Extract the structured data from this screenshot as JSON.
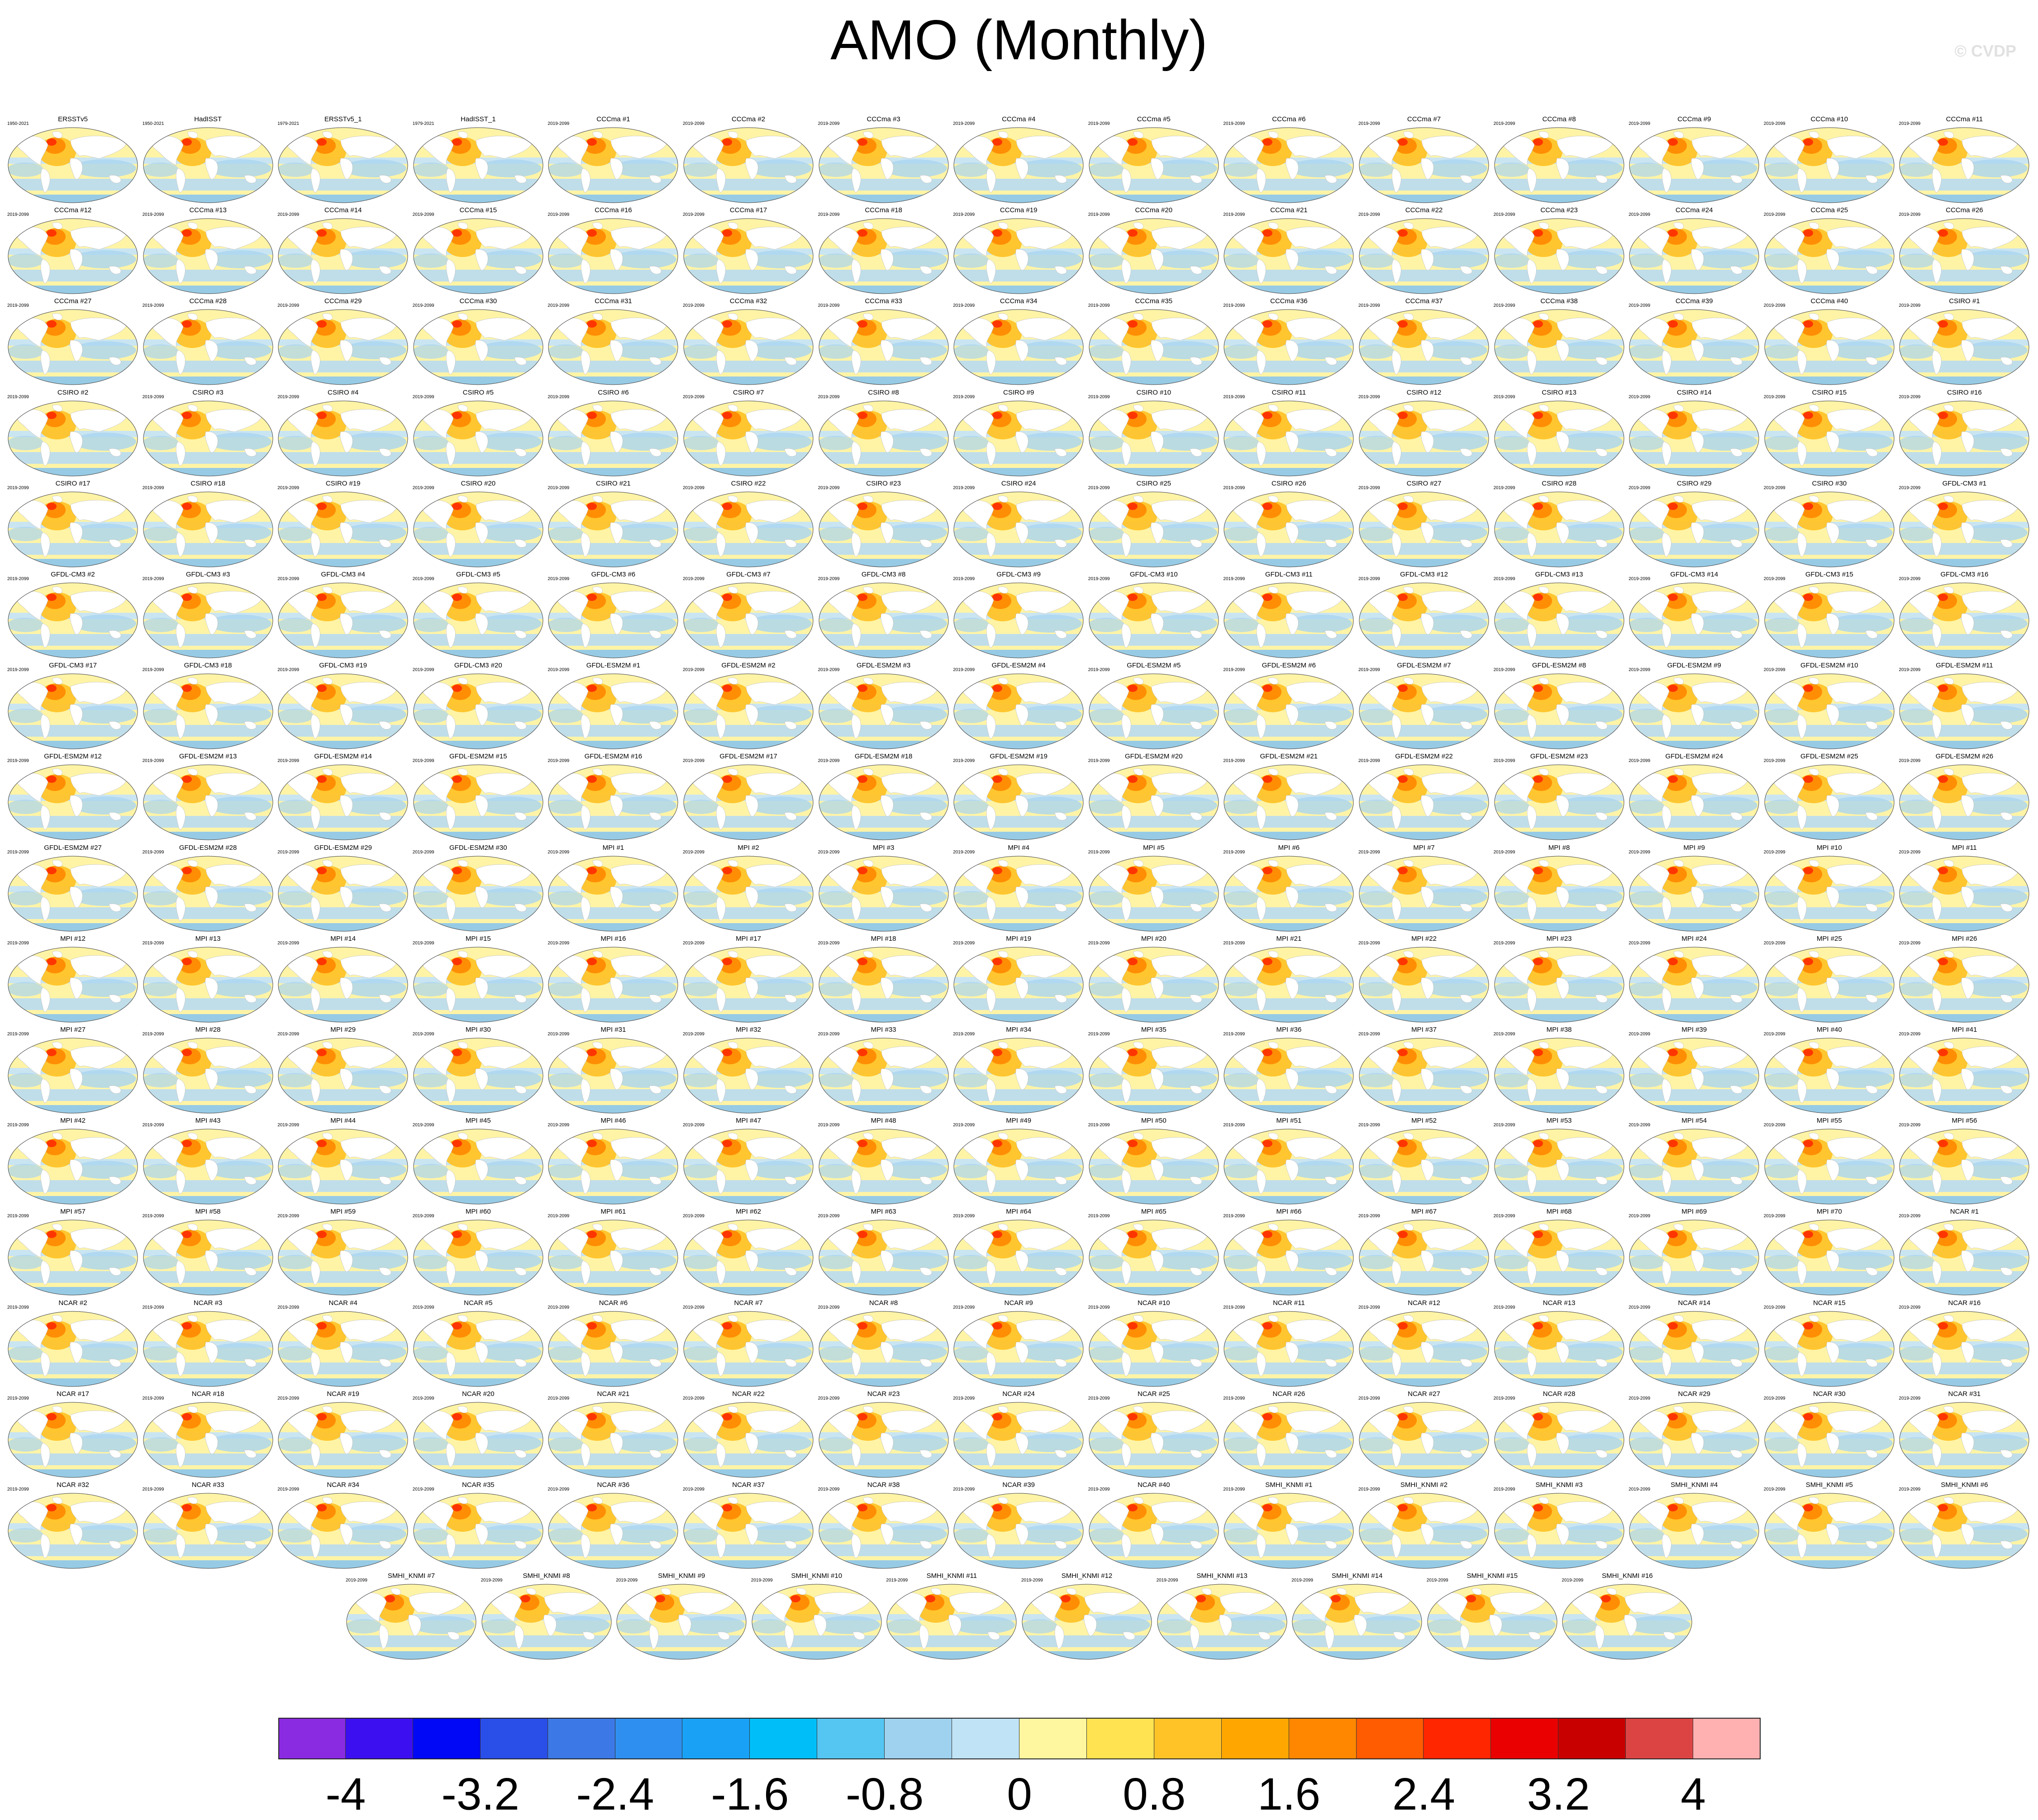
{
  "header": {
    "title": "AMO (Monthly)",
    "copyright": "© CVDP"
  },
  "panels": [
    {
      "title": "ERSSTv5",
      "period": "1950-2021"
    },
    {
      "title": "HadISST",
      "period": "1950-2021"
    },
    {
      "title": "ERSSTv5_1",
      "period": "1979-2021"
    },
    {
      "title": "HadISST_1",
      "period": "1979-2021"
    },
    {
      "title": "CCCma #1",
      "period": "2019-2099"
    },
    {
      "title": "CCCma #2",
      "period": "2019-2099"
    },
    {
      "title": "CCCma #3",
      "period": "2019-2099"
    },
    {
      "title": "CCCma #4",
      "period": "2019-2099"
    },
    {
      "title": "CCCma #5",
      "period": "2019-2099"
    },
    {
      "title": "CCCma #6",
      "period": "2019-2099"
    },
    {
      "title": "CCCma #7",
      "period": "2019-2099"
    },
    {
      "title": "CCCma #8",
      "period": "2019-2099"
    },
    {
      "title": "CCCma #9",
      "period": "2019-2099"
    },
    {
      "title": "CCCma #10",
      "period": "2019-2099"
    },
    {
      "title": "CCCma #11",
      "period": "2019-2099"
    },
    {
      "title": "CCCma #12",
      "period": "2019-2099"
    },
    {
      "title": "CCCma #13",
      "period": "2019-2099"
    },
    {
      "title": "CCCma #14",
      "period": "2019-2099"
    },
    {
      "title": "CCCma #15",
      "period": "2019-2099"
    },
    {
      "title": "CCCma #16",
      "period": "2019-2099"
    },
    {
      "title": "CCCma #17",
      "period": "2019-2099"
    },
    {
      "title": "CCCma #18",
      "period": "2019-2099"
    },
    {
      "title": "CCCma #19",
      "period": "2019-2099"
    },
    {
      "title": "CCCma #20",
      "period": "2019-2099"
    },
    {
      "title": "CCCma #21",
      "period": "2019-2099"
    },
    {
      "title": "CCCma #22",
      "period": "2019-2099"
    },
    {
      "title": "CCCma #23",
      "period": "2019-2099"
    },
    {
      "title": "CCCma #24",
      "period": "2019-2099"
    },
    {
      "title": "CCCma #25",
      "period": "2019-2099"
    },
    {
      "title": "CCCma #26",
      "period": "2019-2099"
    },
    {
      "title": "CCCma #27",
      "period": "2019-2099"
    },
    {
      "title": "CCCma #28",
      "period": "2019-2099"
    },
    {
      "title": "CCCma #29",
      "period": "2019-2099"
    },
    {
      "title": "CCCma #30",
      "period": "2019-2099"
    },
    {
      "title": "CCCma #31",
      "period": "2019-2099"
    },
    {
      "title": "CCCma #32",
      "period": "2019-2099"
    },
    {
      "title": "CCCma #33",
      "period": "2019-2099"
    },
    {
      "title": "CCCma #34",
      "period": "2019-2099"
    },
    {
      "title": "CCCma #35",
      "period": "2019-2099"
    },
    {
      "title": "CCCma #36",
      "period": "2019-2099"
    },
    {
      "title": "CCCma #37",
      "period": "2019-2099"
    },
    {
      "title": "CCCma #38",
      "period": "2019-2099"
    },
    {
      "title": "CCCma #39",
      "period": "2019-2099"
    },
    {
      "title": "CCCma #40",
      "period": "2019-2099"
    },
    {
      "title": "CSIRO #1",
      "period": "2019-2099"
    },
    {
      "title": "CSIRO #2",
      "period": "2019-2099"
    },
    {
      "title": "CSIRO #3",
      "period": "2019-2099"
    },
    {
      "title": "CSIRO #4",
      "period": "2019-2099"
    },
    {
      "title": "CSIRO #5",
      "period": "2019-2099"
    },
    {
      "title": "CSIRO #6",
      "period": "2019-2099"
    },
    {
      "title": "CSIRO #7",
      "period": "2019-2099"
    },
    {
      "title": "CSIRO #8",
      "period": "2019-2099"
    },
    {
      "title": "CSIRO #9",
      "period": "2019-2099"
    },
    {
      "title": "CSIRO #10",
      "period": "2019-2099"
    },
    {
      "title": "CSIRO #11",
      "period": "2019-2099"
    },
    {
      "title": "CSIRO #12",
      "period": "2019-2099"
    },
    {
      "title": "CSIRO #13",
      "period": "2019-2099"
    },
    {
      "title": "CSIRO #14",
      "period": "2019-2099"
    },
    {
      "title": "CSIRO #15",
      "period": "2019-2099"
    },
    {
      "title": "CSIRO #16",
      "period": "2019-2099"
    },
    {
      "title": "CSIRO #17",
      "period": "2019-2099"
    },
    {
      "title": "CSIRO #18",
      "period": "2019-2099"
    },
    {
      "title": "CSIRO #19",
      "period": "2019-2099"
    },
    {
      "title": "CSIRO #20",
      "period": "2019-2099"
    },
    {
      "title": "CSIRO #21",
      "period": "2019-2099"
    },
    {
      "title": "CSIRO #22",
      "period": "2019-2099"
    },
    {
      "title": "CSIRO #23",
      "period": "2019-2099"
    },
    {
      "title": "CSIRO #24",
      "period": "2019-2099"
    },
    {
      "title": "CSIRO #25",
      "period": "2019-2099"
    },
    {
      "title": "CSIRO #26",
      "period": "2019-2099"
    },
    {
      "title": "CSIRO #27",
      "period": "2019-2099"
    },
    {
      "title": "CSIRO #28",
      "period": "2019-2099"
    },
    {
      "title": "CSIRO #29",
      "period": "2019-2099"
    },
    {
      "title": "CSIRO #30",
      "period": "2019-2099"
    },
    {
      "title": "GFDL-CM3 #1",
      "period": "2019-2099"
    },
    {
      "title": "GFDL-CM3 #2",
      "period": "2019-2099"
    },
    {
      "title": "GFDL-CM3 #3",
      "period": "2019-2099"
    },
    {
      "title": "GFDL-CM3 #4",
      "period": "2019-2099"
    },
    {
      "title": "GFDL-CM3 #5",
      "period": "2019-2099"
    },
    {
      "title": "GFDL-CM3 #6",
      "period": "2019-2099"
    },
    {
      "title": "GFDL-CM3 #7",
      "period": "2019-2099"
    },
    {
      "title": "GFDL-CM3 #8",
      "period": "2019-2099"
    },
    {
      "title": "GFDL-CM3 #9",
      "period": "2019-2099"
    },
    {
      "title": "GFDL-CM3 #10",
      "period": "2019-2099"
    },
    {
      "title": "GFDL-CM3 #11",
      "period": "2019-2099"
    },
    {
      "title": "GFDL-CM3 #12",
      "period": "2019-2099"
    },
    {
      "title": "GFDL-CM3 #13",
      "period": "2019-2099"
    },
    {
      "title": "GFDL-CM3 #14",
      "period": "2019-2099"
    },
    {
      "title": "GFDL-CM3 #15",
      "period": "2019-2099"
    },
    {
      "title": "GFDL-CM3 #16",
      "period": "2019-2099"
    },
    {
      "title": "GFDL-CM3 #17",
      "period": "2019-2099"
    },
    {
      "title": "GFDL-CM3 #18",
      "period": "2019-2099"
    },
    {
      "title": "GFDL-CM3 #19",
      "period": "2019-2099"
    },
    {
      "title": "GFDL-CM3 #20",
      "period": "2019-2099"
    },
    {
      "title": "GFDL-ESM2M #1",
      "period": "2019-2099"
    },
    {
      "title": "GFDL-ESM2M #2",
      "period": "2019-2099"
    },
    {
      "title": "GFDL-ESM2M #3",
      "period": "2019-2099"
    },
    {
      "title": "GFDL-ESM2M #4",
      "period": "2019-2099"
    },
    {
      "title": "GFDL-ESM2M #5",
      "period": "2019-2099"
    },
    {
      "title": "GFDL-ESM2M #6",
      "period": "2019-2099"
    },
    {
      "title": "GFDL-ESM2M #7",
      "period": "2019-2099"
    },
    {
      "title": "GFDL-ESM2M #8",
      "period": "2019-2099"
    },
    {
      "title": "GFDL-ESM2M #9",
      "period": "2019-2099"
    },
    {
      "title": "GFDL-ESM2M #10",
      "period": "2019-2099"
    },
    {
      "title": "GFDL-ESM2M #11",
      "period": "2019-2099"
    },
    {
      "title": "GFDL-ESM2M #12",
      "period": "2019-2099"
    },
    {
      "title": "GFDL-ESM2M #13",
      "period": "2019-2099"
    },
    {
      "title": "GFDL-ESM2M #14",
      "period": "2019-2099"
    },
    {
      "title": "GFDL-ESM2M #15",
      "period": "2019-2099"
    },
    {
      "title": "GFDL-ESM2M #16",
      "period": "2019-2099"
    },
    {
      "title": "GFDL-ESM2M #17",
      "period": "2019-2099"
    },
    {
      "title": "GFDL-ESM2M #18",
      "period": "2019-2099"
    },
    {
      "title": "GFDL-ESM2M #19",
      "period": "2019-2099"
    },
    {
      "title": "GFDL-ESM2M #20",
      "period": "2019-2099"
    },
    {
      "title": "GFDL-ESM2M #21",
      "period": "2019-2099"
    },
    {
      "title": "GFDL-ESM2M #22",
      "period": "2019-2099"
    },
    {
      "title": "GFDL-ESM2M #23",
      "period": "2019-2099"
    },
    {
      "title": "GFDL-ESM2M #24",
      "period": "2019-2099"
    },
    {
      "title": "GFDL-ESM2M #25",
      "period": "2019-2099"
    },
    {
      "title": "GFDL-ESM2M #26",
      "period": "2019-2099"
    },
    {
      "title": "GFDL-ESM2M #27",
      "period": "2019-2099"
    },
    {
      "title": "GFDL-ESM2M #28",
      "period": "2019-2099"
    },
    {
      "title": "GFDL-ESM2M #29",
      "period": "2019-2099"
    },
    {
      "title": "GFDL-ESM2M #30",
      "period": "2019-2099"
    },
    {
      "title": "MPI #1",
      "period": "2019-2099"
    },
    {
      "title": "MPI #2",
      "period": "2019-2099"
    },
    {
      "title": "MPI #3",
      "period": "2019-2099"
    },
    {
      "title": "MPI #4",
      "period": "2019-2099"
    },
    {
      "title": "MPI #5",
      "period": "2019-2099"
    },
    {
      "title": "MPI #6",
      "period": "2019-2099"
    },
    {
      "title": "MPI #7",
      "period": "2019-2099"
    },
    {
      "title": "MPI #8",
      "period": "2019-2099"
    },
    {
      "title": "MPI #9",
      "period": "2019-2099"
    },
    {
      "title": "MPI #10",
      "period": "2019-2099"
    },
    {
      "title": "MPI #11",
      "period": "2019-2099"
    },
    {
      "title": "MPI #12",
      "period": "2019-2099"
    },
    {
      "title": "MPI #13",
      "period": "2019-2099"
    },
    {
      "title": "MPI #14",
      "period": "2019-2099"
    },
    {
      "title": "MPI #15",
      "period": "2019-2099"
    },
    {
      "title": "MPI #16",
      "period": "2019-2099"
    },
    {
      "title": "MPI #17",
      "period": "2019-2099"
    },
    {
      "title": "MPI #18",
      "period": "2019-2099"
    },
    {
      "title": "MPI #19",
      "period": "2019-2099"
    },
    {
      "title": "MPI #20",
      "period": "2019-2099"
    },
    {
      "title": "MPI #21",
      "period": "2019-2099"
    },
    {
      "title": "MPI #22",
      "period": "2019-2099"
    },
    {
      "title": "MPI #23",
      "period": "2019-2099"
    },
    {
      "title": "MPI #24",
      "period": "2019-2099"
    },
    {
      "title": "MPI #25",
      "period": "2019-2099"
    },
    {
      "title": "MPI #26",
      "period": "2019-2099"
    },
    {
      "title": "MPI #27",
      "period": "2019-2099"
    },
    {
      "title": "MPI #28",
      "period": "2019-2099"
    },
    {
      "title": "MPI #29",
      "period": "2019-2099"
    },
    {
      "title": "MPI #30",
      "period": "2019-2099"
    },
    {
      "title": "MPI #31",
      "period": "2019-2099"
    },
    {
      "title": "MPI #32",
      "period": "2019-2099"
    },
    {
      "title": "MPI #33",
      "period": "2019-2099"
    },
    {
      "title": "MPI #34",
      "period": "2019-2099"
    },
    {
      "title": "MPI #35",
      "period": "2019-2099"
    },
    {
      "title": "MPI #36",
      "period": "2019-2099"
    },
    {
      "title": "MPI #37",
      "period": "2019-2099"
    },
    {
      "title": "MPI #38",
      "period": "2019-2099"
    },
    {
      "title": "MPI #39",
      "period": "2019-2099"
    },
    {
      "title": "MPI #40",
      "period": "2019-2099"
    },
    {
      "title": "MPI #41",
      "period": "2019-2099"
    },
    {
      "title": "MPI #42",
      "period": "2019-2099"
    },
    {
      "title": "MPI #43",
      "period": "2019-2099"
    },
    {
      "title": "MPI #44",
      "period": "2019-2099"
    },
    {
      "title": "MPI #45",
      "period": "2019-2099"
    },
    {
      "title": "MPI #46",
      "period": "2019-2099"
    },
    {
      "title": "MPI #47",
      "period": "2019-2099"
    },
    {
      "title": "MPI #48",
      "period": "2019-2099"
    },
    {
      "title": "MPI #49",
      "period": "2019-2099"
    },
    {
      "title": "MPI #50",
      "period": "2019-2099"
    },
    {
      "title": "MPI #51",
      "period": "2019-2099"
    },
    {
      "title": "MPI #52",
      "period": "2019-2099"
    },
    {
      "title": "MPI #53",
      "period": "2019-2099"
    },
    {
      "title": "MPI #54",
      "period": "2019-2099"
    },
    {
      "title": "MPI #55",
      "period": "2019-2099"
    },
    {
      "title": "MPI #56",
      "period": "2019-2099"
    },
    {
      "title": "MPI #57",
      "period": "2019-2099"
    },
    {
      "title": "MPI #58",
      "period": "2019-2099"
    },
    {
      "title": "MPI #59",
      "period": "2019-2099"
    },
    {
      "title": "MPI #60",
      "period": "2019-2099"
    },
    {
      "title": "MPI #61",
      "period": "2019-2099"
    },
    {
      "title": "MPI #62",
      "period": "2019-2099"
    },
    {
      "title": "MPI #63",
      "period": "2019-2099"
    },
    {
      "title": "MPI #64",
      "period": "2019-2099"
    },
    {
      "title": "MPI #65",
      "period": "2019-2099"
    },
    {
      "title": "MPI #66",
      "period": "2019-2099"
    },
    {
      "title": "MPI #67",
      "period": "2019-2099"
    },
    {
      "title": "MPI #68",
      "period": "2019-2099"
    },
    {
      "title": "MPI #69",
      "period": "2019-2099"
    },
    {
      "title": "MPI #70",
      "period": "2019-2099"
    },
    {
      "title": "NCAR #1",
      "period": "2019-2099"
    },
    {
      "title": "NCAR #2",
      "period": "2019-2099"
    },
    {
      "title": "NCAR #3",
      "period": "2019-2099"
    },
    {
      "title": "NCAR #4",
      "period": "2019-2099"
    },
    {
      "title": "NCAR #5",
      "period": "2019-2099"
    },
    {
      "title": "NCAR #6",
      "period": "2019-2099"
    },
    {
      "title": "NCAR #7",
      "period": "2019-2099"
    },
    {
      "title": "NCAR #8",
      "period": "2019-2099"
    },
    {
      "title": "NCAR #9",
      "period": "2019-2099"
    },
    {
      "title": "NCAR #10",
      "period": "2019-2099"
    },
    {
      "title": "NCAR #11",
      "period": "2019-2099"
    },
    {
      "title": "NCAR #12",
      "period": "2019-2099"
    },
    {
      "title": "NCAR #13",
      "period": "2019-2099"
    },
    {
      "title": "NCAR #14",
      "period": "2019-2099"
    },
    {
      "title": "NCAR #15",
      "period": "2019-2099"
    },
    {
      "title": "NCAR #16",
      "period": "2019-2099"
    },
    {
      "title": "NCAR #17",
      "period": "2019-2099"
    },
    {
      "title": "NCAR #18",
      "period": "2019-2099"
    },
    {
      "title": "NCAR #19",
      "period": "2019-2099"
    },
    {
      "title": "NCAR #20",
      "period": "2019-2099"
    },
    {
      "title": "NCAR #21",
      "period": "2019-2099"
    },
    {
      "title": "NCAR #22",
      "period": "2019-2099"
    },
    {
      "title": "NCAR #23",
      "period": "2019-2099"
    },
    {
      "title": "NCAR #24",
      "period": "2019-2099"
    },
    {
      "title": "NCAR #25",
      "period": "2019-2099"
    },
    {
      "title": "NCAR #26",
      "period": "2019-2099"
    },
    {
      "title": "NCAR #27",
      "period": "2019-2099"
    },
    {
      "title": "NCAR #28",
      "period": "2019-2099"
    },
    {
      "title": "NCAR #29",
      "period": "2019-2099"
    },
    {
      "title": "NCAR #30",
      "period": "2019-2099"
    },
    {
      "title": "NCAR #31",
      "period": "2019-2099"
    },
    {
      "title": "NCAR #32",
      "period": "2019-2099"
    },
    {
      "title": "NCAR #33",
      "period": "2019-2099"
    },
    {
      "title": "NCAR #34",
      "period": "2019-2099"
    },
    {
      "title": "NCAR #35",
      "period": "2019-2099"
    },
    {
      "title": "NCAR #36",
      "period": "2019-2099"
    },
    {
      "title": "NCAR #37",
      "period": "2019-2099"
    },
    {
      "title": "NCAR #38",
      "period": "2019-2099"
    },
    {
      "title": "NCAR #39",
      "period": "2019-2099"
    },
    {
      "title": "NCAR #40",
      "period": "2019-2099"
    },
    {
      "title": "SMHI_KNMI #1",
      "period": "2019-2099"
    },
    {
      "title": "SMHI_KNMI #2",
      "period": "2019-2099"
    },
    {
      "title": "SMHI_KNMI #3",
      "period": "2019-2099"
    },
    {
      "title": "SMHI_KNMI #4",
      "period": "2019-2099"
    },
    {
      "title": "SMHI_KNMI #5",
      "period": "2019-2099"
    },
    {
      "title": "SMHI_KNMI #6",
      "period": "2019-2099"
    },
    {
      "title": "SMHI_KNMI #7",
      "period": "2019-2099"
    },
    {
      "title": "SMHI_KNMI #8",
      "period": "2019-2099"
    },
    {
      "title": "SMHI_KNMI #9",
      "period": "2019-2099"
    },
    {
      "title": "SMHI_KNMI #10",
      "period": "2019-2099"
    },
    {
      "title": "SMHI_KNMI #11",
      "period": "2019-2099"
    },
    {
      "title": "SMHI_KNMI #12",
      "period": "2019-2099"
    },
    {
      "title": "SMHI_KNMI #13",
      "period": "2019-2099"
    },
    {
      "title": "SMHI_KNMI #14",
      "period": "2019-2099"
    },
    {
      "title": "SMHI_KNMI #15",
      "period": "2019-2099"
    },
    {
      "title": "SMHI_KNMI #16",
      "period": "2019-2099"
    }
  ],
  "chart_data": {
    "type": "heatmap",
    "title": "AMO (Monthly)",
    "colorbar": {
      "colors": [
        "#8a2be2",
        "#3b0ff0",
        "#0008f5",
        "#2a4ee8",
        "#3c78e6",
        "#2e8ff0",
        "#19a2f5",
        "#00bef8",
        "#55c5f2",
        "#9ed2ee",
        "#c0e3f5",
        "#fff7a0",
        "#ffe350",
        "#ffc328",
        "#ffa700",
        "#ff8700",
        "#ff5b00",
        "#ff2600",
        "#ea0000",
        "#c80000",
        "#dc4444",
        "#ffb0b0"
      ],
      "tick_labels": [
        "-4",
        "-3.2",
        "-2.4",
        "-1.6",
        "-0.8",
        "0",
        "0.8",
        "1.6",
        "2.4",
        "3.2",
        "4"
      ],
      "tick_values": [
        -4,
        -3.2,
        -2.4,
        -1.6,
        -0.8,
        0,
        0.8,
        1.6,
        2.4,
        3.2,
        4
      ],
      "range": [
        -4.4,
        4.4
      ]
    }
  }
}
